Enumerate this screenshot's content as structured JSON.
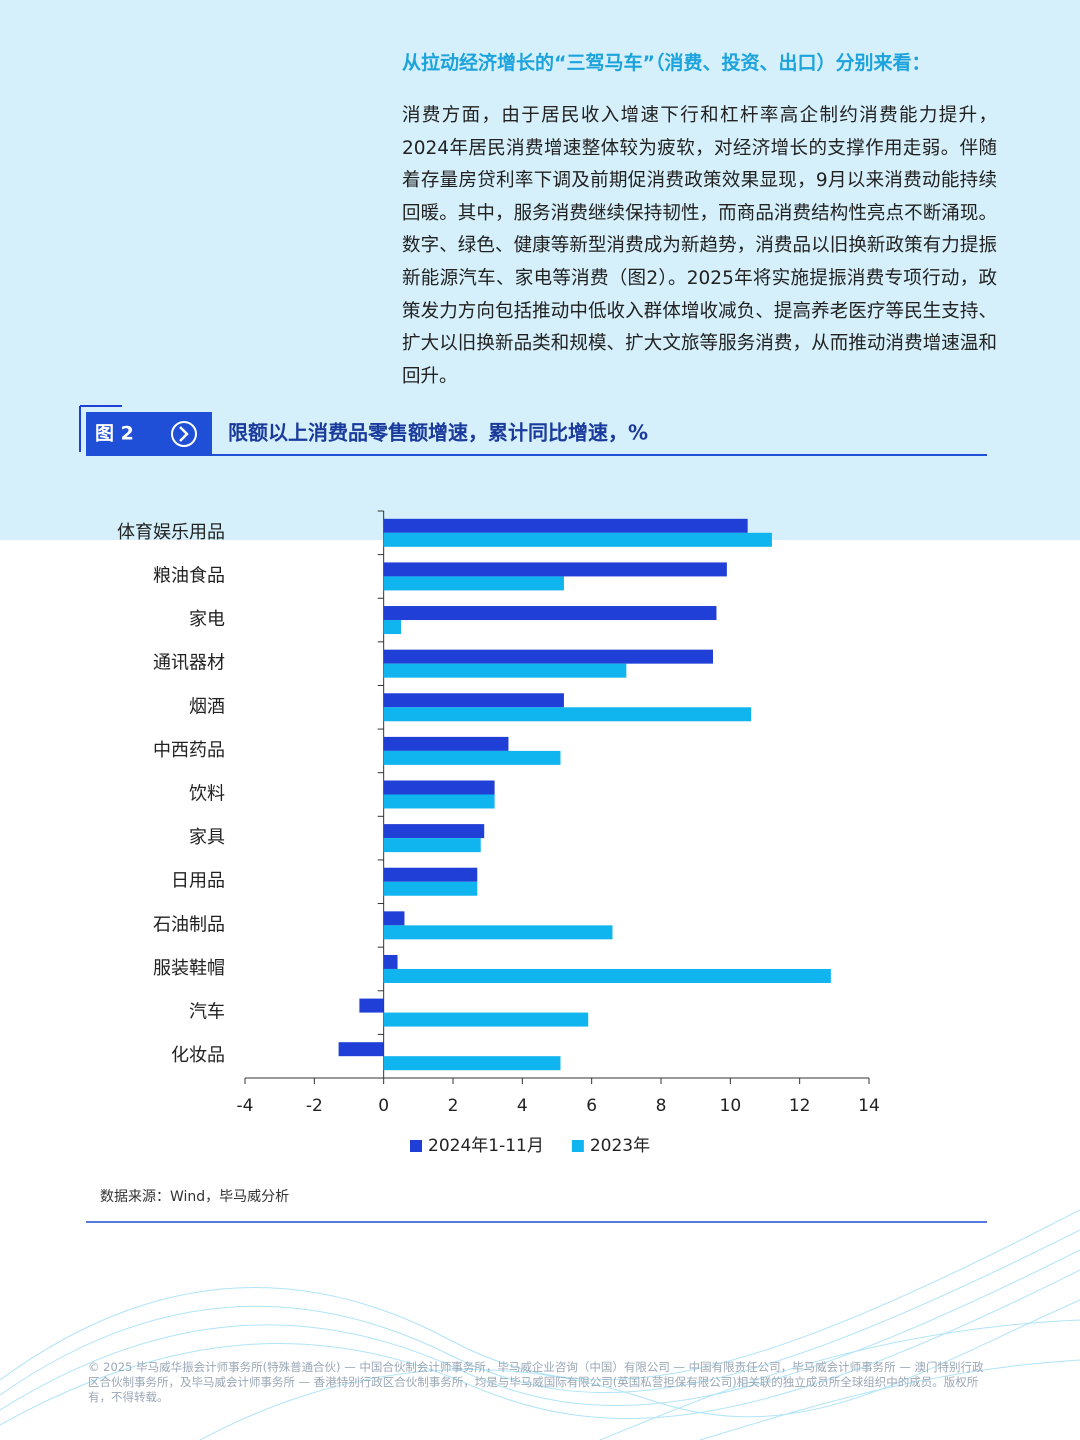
{
  "header": {
    "heading": "从拉动经济增长的“三驾马车”（消费、投资、出口）分别来看："
  },
  "body": {
    "paragraph": "消费方面，由于居民收入增速下行和杠杆率高企制约消费能力提升，2024年居民消费增速整体较为疲软，对经济增长的支撑作用走弱。伴随着存量房贷利率下调及前期促消费政策效果显现，9月以来消费动能持续回暖。其中，服务消费继续保持韧性，而商品消费结构性亮点不断涌现。数字、绿色、健康等新型消费成为新趋势，消费品以旧换新政策有力提振新能源汽车、家电等消费（图2）。2025年将实施提振消费专项行动，政策发力方向包括推动中低收入群体增收减负、提高养老医疗等民生支持、扩大以旧换新品类和规模、扩大文旅等服务消费，从而推动消费增速温和回升。"
  },
  "figure": {
    "label": "图 2",
    "title": "限额以上消费品零售额增速，累计同比增速，%"
  },
  "chart_data": {
    "type": "barh",
    "categories": [
      "体育娱乐用品",
      "粮油食品",
      "家电",
      "通讯器材",
      "烟酒",
      "中西药品",
      "饮料",
      "家具",
      "日用品",
      "石油制品",
      "服装鞋帽",
      "汽车",
      "化妆品"
    ],
    "series": [
      {
        "name": "2024年1-11月",
        "color": "#1f3fd6",
        "values": [
          10.5,
          9.9,
          9.6,
          9.5,
          5.2,
          3.6,
          3.2,
          2.9,
          2.7,
          0.6,
          0.4,
          -0.7,
          -1.3
        ]
      },
      {
        "name": "2023年",
        "color": "#10b4ee",
        "values": [
          11.2,
          5.2,
          0.5,
          7.0,
          10.6,
          5.1,
          3.2,
          2.8,
          2.7,
          6.6,
          12.9,
          5.9,
          5.1
        ]
      }
    ],
    "xlim": [
      -4,
      14
    ],
    "xticks": [
      -4,
      -2,
      0,
      2,
      4,
      6,
      8,
      10,
      12,
      14
    ],
    "legend": "bottom"
  },
  "source": "数据来源：Wind，毕马威分析",
  "footer": "© 2025 毕马威华振会计师事务所(特殊普通合伙) — 中国合伙制会计师事务所，毕马威企业咨询（中国）有限公司 — 中国有限责任公司，毕马威会计师事务所 — 澳门特别行政区合伙制事务所，及毕马威会计师事务所 — 香港特别行政区合伙制事务所，均是与毕马威国际有限公司(英国私营担保有限公司)相关联的独立成员所全球组织中的成员。版权所有，不得转载。"
}
